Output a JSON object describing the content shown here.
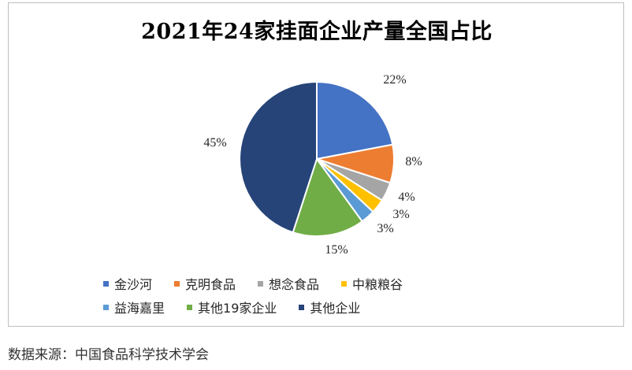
{
  "chart_data": {
    "type": "pie",
    "title": "2021年24家挂面企业产量全国占比",
    "categories": [
      "金沙河",
      "克明食品",
      "想念食品",
      "中粮粮谷",
      "益海嘉里",
      "其他19家企业",
      "其他企业"
    ],
    "values": [
      22,
      8,
      4,
      3,
      3,
      15,
      45
    ],
    "labels": [
      "22%",
      "8%",
      "4%",
      "3%",
      "3%",
      "15%",
      "45%"
    ],
    "colors": [
      "#4472C4",
      "#ED7D31",
      "#A5A5A5",
      "#FFC000",
      "#5B9BD5",
      "#70AD47",
      "#264478"
    ],
    "legend_position": "bottom",
    "start_angle": "12 o'clock, clockwise"
  },
  "source_note": "数据来源：中国食品科学技术学会"
}
